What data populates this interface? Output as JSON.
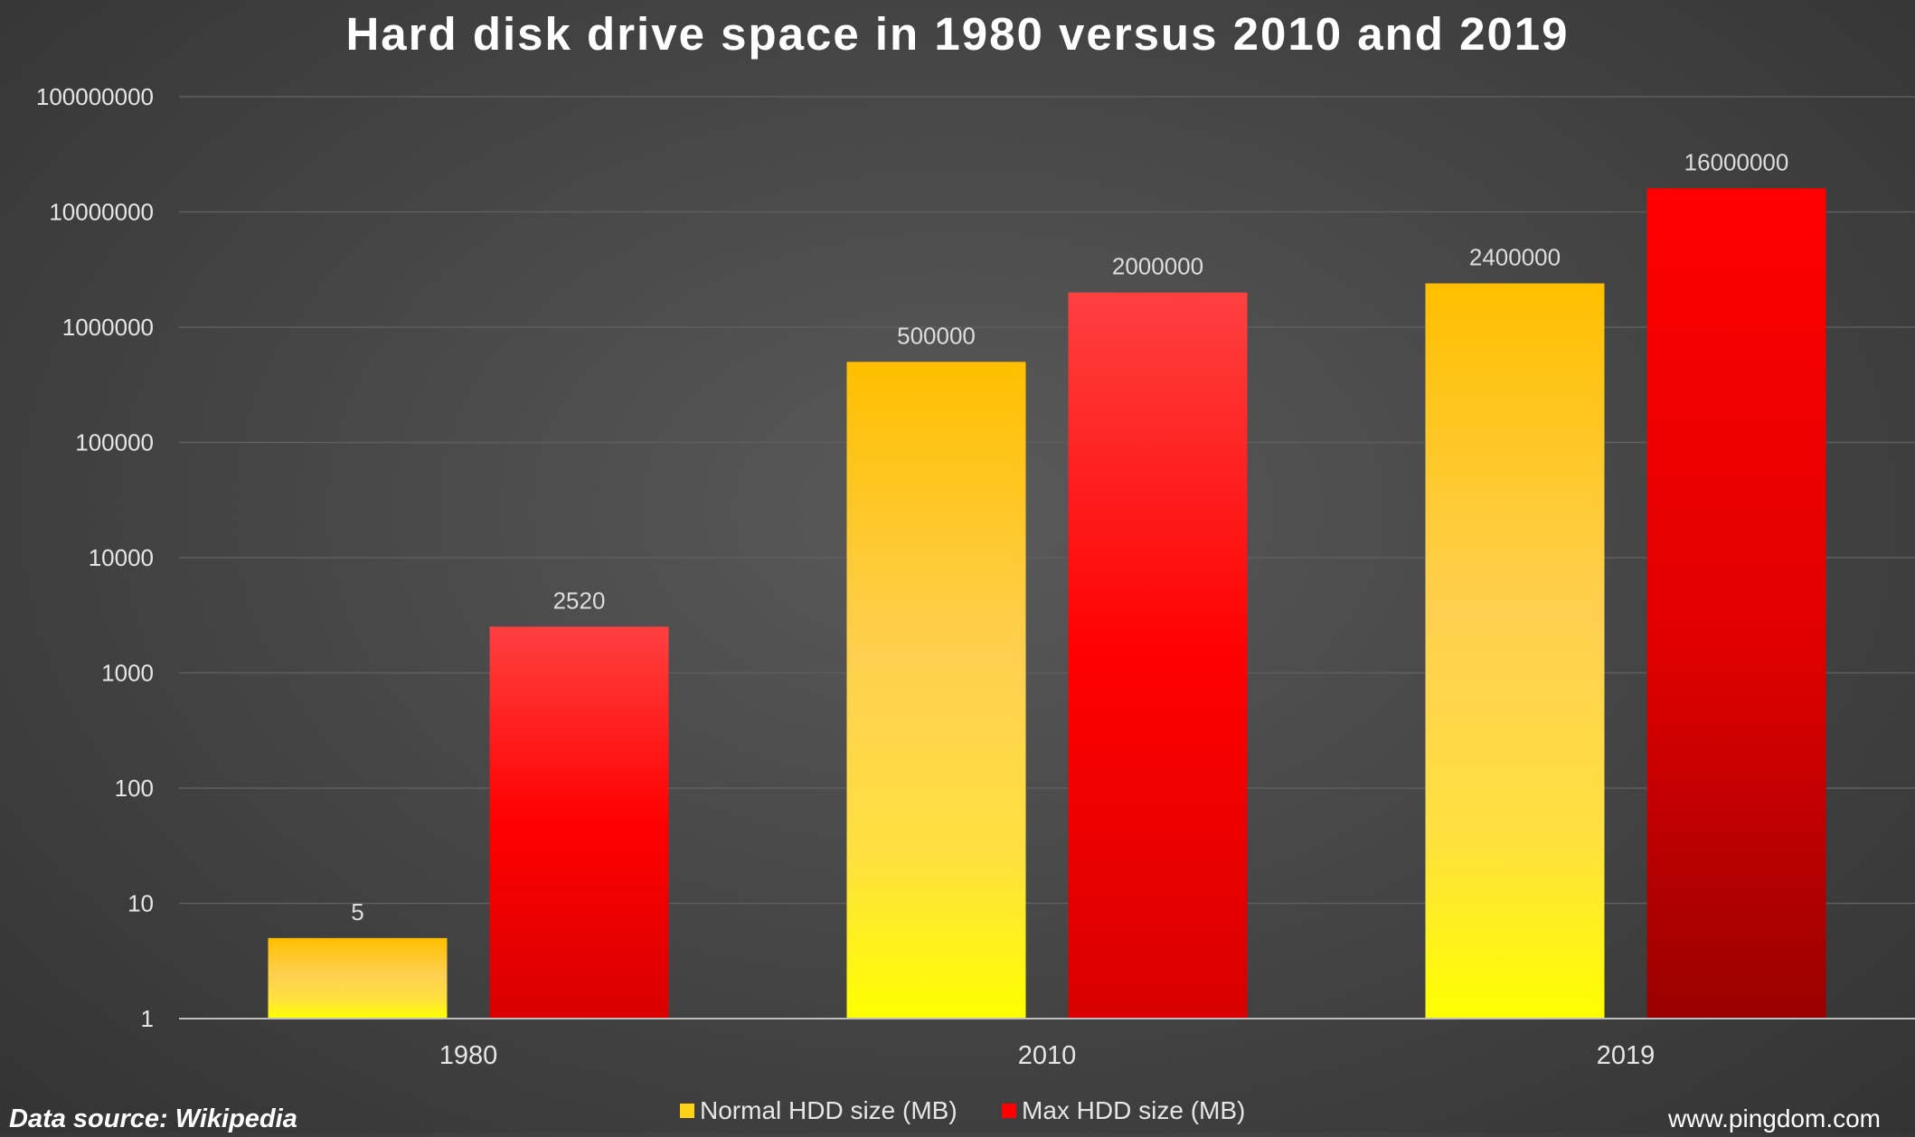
{
  "chart_data": {
    "type": "bar",
    "title": "Hard disk drive space in 1980 versus 2010 and 2019",
    "categories": [
      "1980",
      "2010",
      "2019"
    ],
    "series": [
      {
        "name": "Normal HDD size (MB)",
        "values": [
          5,
          500000,
          2400000
        ],
        "color": "#ffc000"
      },
      {
        "name": "Max HDD size (MB)",
        "values": [
          2520,
          2000000,
          16000000
        ],
        "color": "#ff0000"
      }
    ],
    "y_scale": "log",
    "ylim": [
      1,
      100000000
    ],
    "y_ticks": [
      "1",
      "10",
      "100",
      "1000",
      "10000",
      "100000",
      "1000000",
      "10000000",
      "100000000"
    ],
    "data_labels": [
      [
        "5",
        "500000",
        "2400000"
      ],
      [
        "2520",
        "2000000",
        "16000000"
      ]
    ],
    "grid": true,
    "legend_position": "bottom",
    "xlabel": "",
    "ylabel": ""
  },
  "footer": {
    "source": "Data source: Wikipedia",
    "website": "www.pingdom.com"
  }
}
